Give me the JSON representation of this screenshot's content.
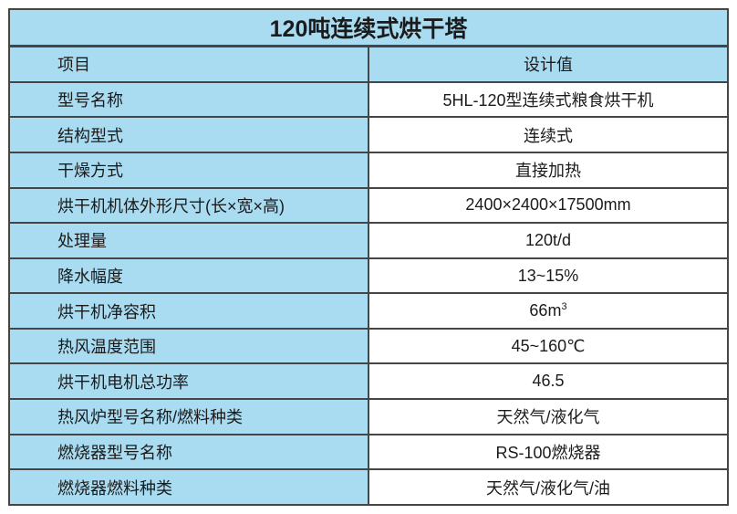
{
  "table": {
    "title": "120吨连续式烘干塔",
    "columns": {
      "item": "项目",
      "value": "设计值"
    },
    "rows": [
      {
        "label": "型号名称",
        "value": "5HL-120型连续式粮食烘干机"
      },
      {
        "label": "结构型式",
        "value": "连续式"
      },
      {
        "label": "干燥方式",
        "value": "直接加热"
      },
      {
        "label": "烘干机机体外形尺寸(长×宽×高)",
        "value": "2400×2400×17500mm"
      },
      {
        "label": "处理量",
        "value": "120t/d"
      },
      {
        "label": "降水幅度",
        "value": "13~15%"
      },
      {
        "label": "烘干机净容积",
        "value": "66m",
        "value_sup": "3"
      },
      {
        "label": "热风温度范围",
        "value": "45~160℃"
      },
      {
        "label": "烘干机电机总功率",
        "value": "46.5"
      },
      {
        "label": "热风炉型号名称/燃料种类",
        "value": "天然气/液化气"
      },
      {
        "label": "燃烧器型号名称",
        "value": "RS-100燃烧器"
      },
      {
        "label": "燃烧器燃料种类",
        "value": "天然气/液化气/油"
      }
    ],
    "colors": {
      "cell_blue": "#a9dbf1",
      "value_bg": "#ffffff",
      "border": "#454545",
      "text": "#1b1b1b",
      "page_bg": "#ffffff"
    }
  }
}
